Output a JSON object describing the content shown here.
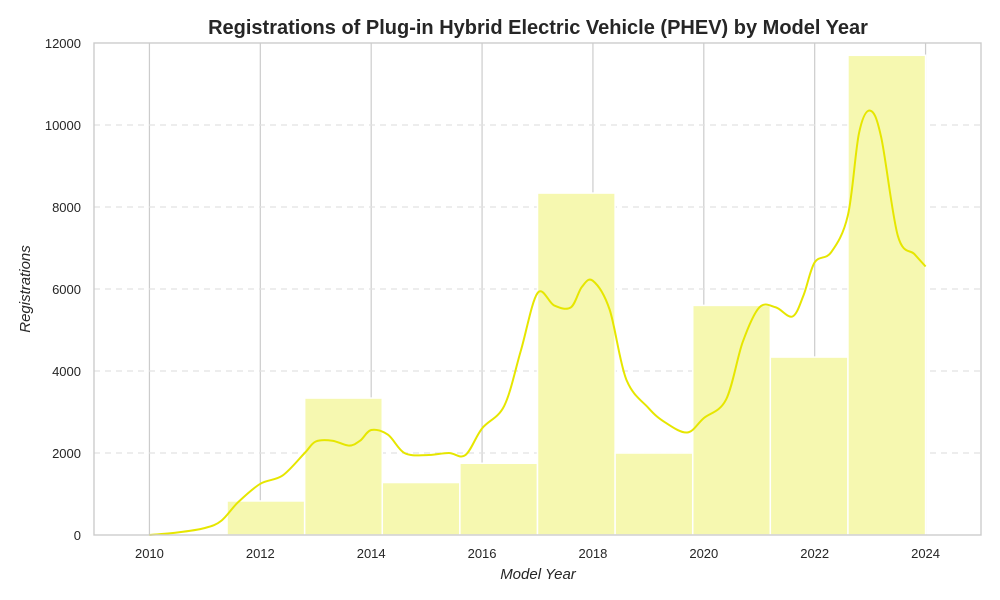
{
  "chart_data": {
    "type": "bar",
    "title": "Registrations of Plug-in Hybrid Electric Vehicle (PHEV) by Model Year",
    "xlabel": "Model Year",
    "ylabel": "Registrations",
    "xlim": [
      2009,
      2025
    ],
    "ylim": [
      0,
      12000
    ],
    "x_ticks": [
      2010,
      2012,
      2014,
      2016,
      2018,
      2020,
      2022,
      2024
    ],
    "y_ticks": [
      0,
      2000,
      4000,
      6000,
      8000,
      10000,
      12000
    ],
    "grid": true,
    "colors": {
      "bar_fill": "#f6f8b0",
      "bar_edge": "#ffffff",
      "kde_line": "#e6e600",
      "grid_x": "#cccccc",
      "grid_y": "#e2e2e2",
      "frame": "#cccccc"
    },
    "bins": [
      {
        "start": 2010.0,
        "end": 2011.4,
        "value": 0
      },
      {
        "start": 2011.4,
        "end": 2012.8,
        "value": 830
      },
      {
        "start": 2012.8,
        "end": 2014.2,
        "value": 3340
      },
      {
        "start": 2014.2,
        "end": 2015.6,
        "value": 1280
      },
      {
        "start": 2015.6,
        "end": 2017.0,
        "value": 1750
      },
      {
        "start": 2017.0,
        "end": 2018.4,
        "value": 8340
      },
      {
        "start": 2018.4,
        "end": 2019.8,
        "value": 2000
      },
      {
        "start": 2019.8,
        "end": 2021.2,
        "value": 5600
      },
      {
        "start": 2021.2,
        "end": 2022.6,
        "value": 4340
      },
      {
        "start": 2022.6,
        "end": 2024.0,
        "value": 11700
      }
    ],
    "kde": {
      "x": [
        2010.0,
        2010.5,
        2011.0,
        2011.3,
        2011.6,
        2012.0,
        2012.4,
        2012.8,
        2013.0,
        2013.3,
        2013.6,
        2013.8,
        2014.0,
        2014.3,
        2014.6,
        2015.0,
        2015.4,
        2015.7,
        2016.0,
        2016.4,
        2016.7,
        2017.0,
        2017.3,
        2017.6,
        2017.8,
        2018.0,
        2018.3,
        2018.6,
        2019.0,
        2019.3,
        2019.7,
        2020.0,
        2020.4,
        2020.7,
        2021.0,
        2021.3,
        2021.6,
        2021.8,
        2022.0,
        2022.3,
        2022.6,
        2022.8,
        2023.0,
        2023.2,
        2023.5,
        2023.8,
        2024.0
      ],
      "y": [
        0,
        60,
        170,
        350,
        800,
        1250,
        1450,
        2000,
        2280,
        2300,
        2180,
        2300,
        2560,
        2450,
        2000,
        1950,
        2000,
        1950,
        2600,
        3150,
        4500,
        5900,
        5600,
        5550,
        6050,
        6200,
        5500,
        3800,
        3100,
        2750,
        2500,
        2850,
        3300,
        4700,
        5550,
        5550,
        5330,
        5850,
        6650,
        6900,
        7800,
        9800,
        10350,
        9700,
        7300,
        6850,
        6550
      ]
    }
  }
}
